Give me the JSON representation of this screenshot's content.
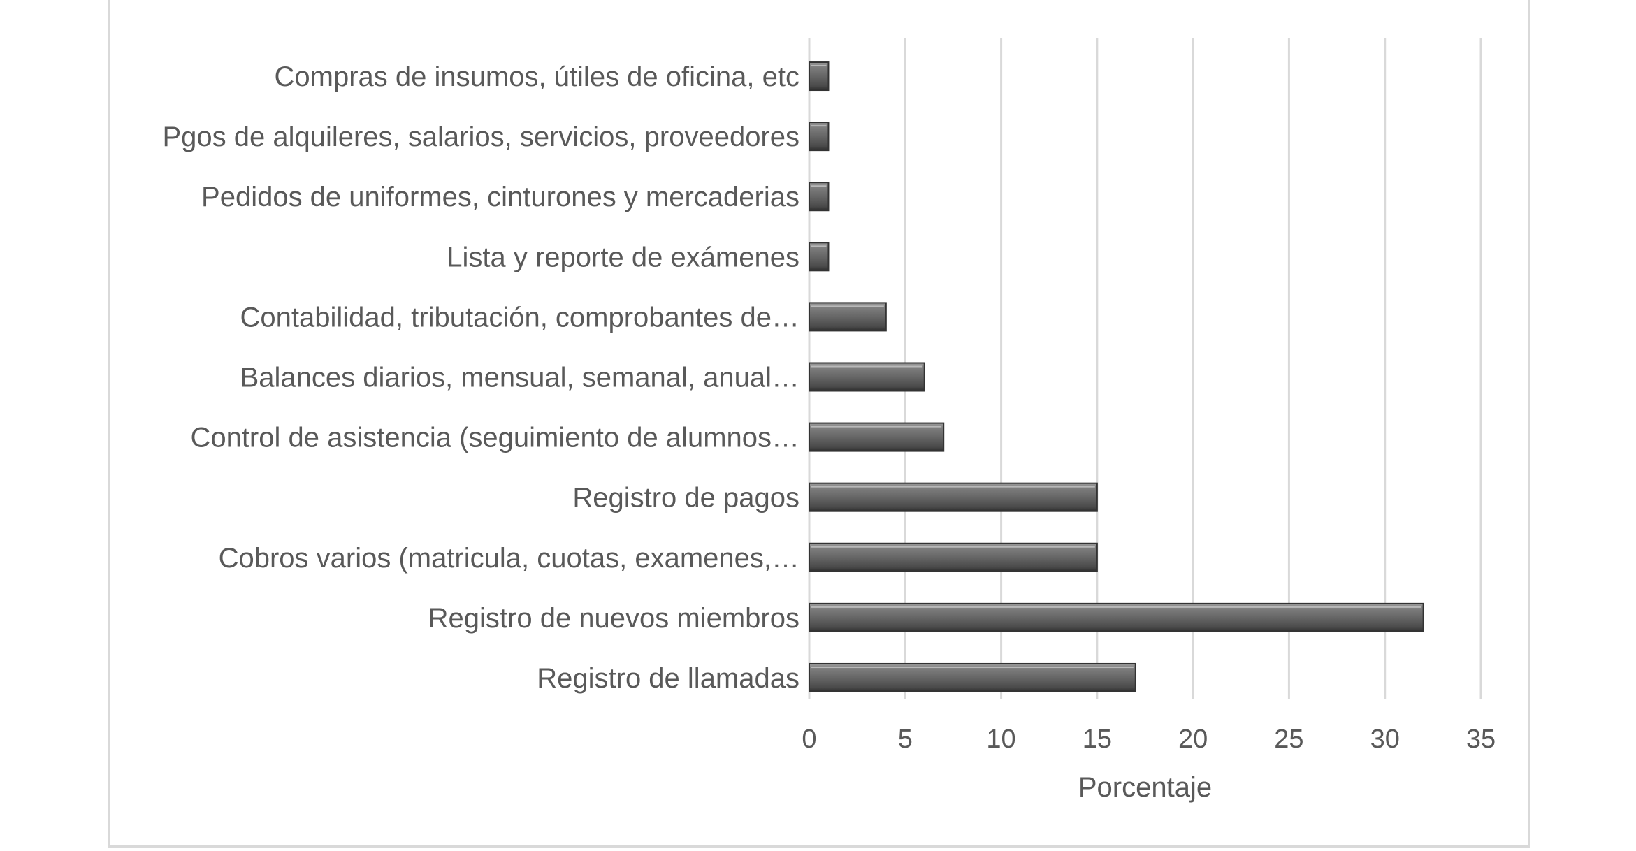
{
  "chart_data": {
    "type": "bar",
    "orientation": "horizontal",
    "categories": [
      "Registro de llamadas",
      "Registro de nuevos miembros",
      "Cobros varios (matricula, cuotas, examenes,…",
      "Registro de pagos",
      "Control de asistencia (seguimiento de alumnos…",
      "Balances diarios, mensual, semanal, anual…",
      "Contabilidad, tributación, comprobantes de…",
      "Lista y reporte de exámenes",
      "Pedidos de uniformes, cinturones y mercaderias",
      "Pgos de alquileres, salarios, servicios, proveedores",
      "Compras de insumos, útiles de oficina, etc"
    ],
    "values": [
      17,
      32,
      15,
      15,
      7,
      6,
      4,
      1,
      1,
      1,
      1
    ],
    "title": "",
    "xlabel": "Porcentaje",
    "ylabel": "",
    "xlim": [
      0,
      35
    ],
    "xticks": [
      "0",
      "5",
      "10",
      "15",
      "20",
      "25",
      "30",
      "35"
    ],
    "grid": "vertical",
    "legend": "none",
    "bar_color": "#6b6b6b"
  }
}
